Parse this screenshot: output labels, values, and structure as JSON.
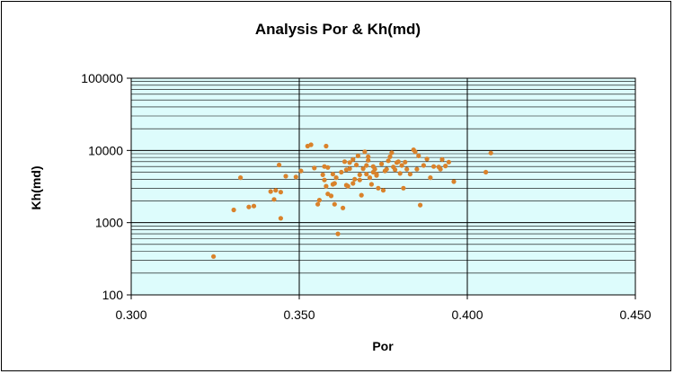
{
  "chart_data": {
    "type": "scatter",
    "title": "Analysis Por & Kh(md)",
    "xlabel": "Por",
    "ylabel": "Kh(md)",
    "xlim": [
      0.3,
      0.45
    ],
    "ylim": [
      100,
      100000
    ],
    "yscale": "log",
    "x_ticks": [
      "0.300",
      "0.350",
      "0.400",
      "0.450"
    ],
    "y_ticks": [
      "100",
      "1000",
      "10000",
      "100000"
    ],
    "grid": "horizontal major and minor (log), vertical major",
    "legend": "none",
    "colors": {
      "plot_bg": "#ddfcfc",
      "marker": "#d9822b",
      "grid": "#000000"
    },
    "series": [
      {
        "x": [
          0.3245,
          0.3305,
          0.3325,
          0.335,
          0.3365,
          0.3415,
          0.3425,
          0.343,
          0.344,
          0.3445,
          0.3445,
          0.346,
          0.349,
          0.3505,
          0.3525,
          0.3535,
          0.3545,
          0.3555,
          0.356,
          0.357,
          0.3575,
          0.3575,
          0.358,
          0.358,
          0.3585,
          0.3585,
          0.3595,
          0.36,
          0.36,
          0.3605,
          0.3605,
          0.361,
          0.3615,
          0.3625,
          0.363,
          0.3635,
          0.364,
          0.364,
          0.3645,
          0.365,
          0.365,
          0.366,
          0.366,
          0.3665,
          0.367,
          0.3675,
          0.368,
          0.368,
          0.3685,
          0.369,
          0.3695,
          0.37,
          0.37,
          0.3705,
          0.3705,
          0.371,
          0.3715,
          0.372,
          0.372,
          0.3725,
          0.373,
          0.373,
          0.3735,
          0.3745,
          0.375,
          0.3755,
          0.376,
          0.3765,
          0.377,
          0.3775,
          0.378,
          0.3785,
          0.379,
          0.3795,
          0.38,
          0.3805,
          0.381,
          0.3815,
          0.382,
          0.383,
          0.384,
          0.3845,
          0.385,
          0.3855,
          0.386,
          0.387,
          0.388,
          0.389,
          0.39,
          0.3915,
          0.392,
          0.3925,
          0.3935,
          0.3945,
          0.396,
          0.4055,
          0.407
        ],
        "y": [
          340,
          1500,
          4200,
          1650,
          1700,
          2700,
          2100,
          2800,
          6300,
          2650,
          1150,
          4400,
          4300,
          5200,
          11500,
          12000,
          5700,
          1800,
          2050,
          4600,
          6000,
          3900,
          3200,
          11500,
          2500,
          5800,
          2350,
          3400,
          4700,
          1800,
          3500,
          4200,
          700,
          5000,
          1600,
          7000,
          5400,
          3300,
          3200,
          5600,
          6800,
          3500,
          7500,
          4000,
          6300,
          8400,
          3900,
          4600,
          2400,
          5600,
          9600,
          6200,
          4700,
          7300,
          8200,
          4200,
          3400,
          6000,
          5000,
          5500,
          4700,
          4500,
          3000,
          6500,
          2800,
          5200,
          5500,
          7200,
          8200,
          9300,
          5900,
          5400,
          6800,
          7000,
          4800,
          6200,
          3000,
          6900,
          5500,
          4700,
          10200,
          9600,
          5500,
          8400,
          1750,
          6200,
          7600,
          4200,
          6000,
          5900,
          5500,
          7500,
          6100,
          6900,
          3700,
          5000,
          9200
        ]
      }
    ]
  }
}
